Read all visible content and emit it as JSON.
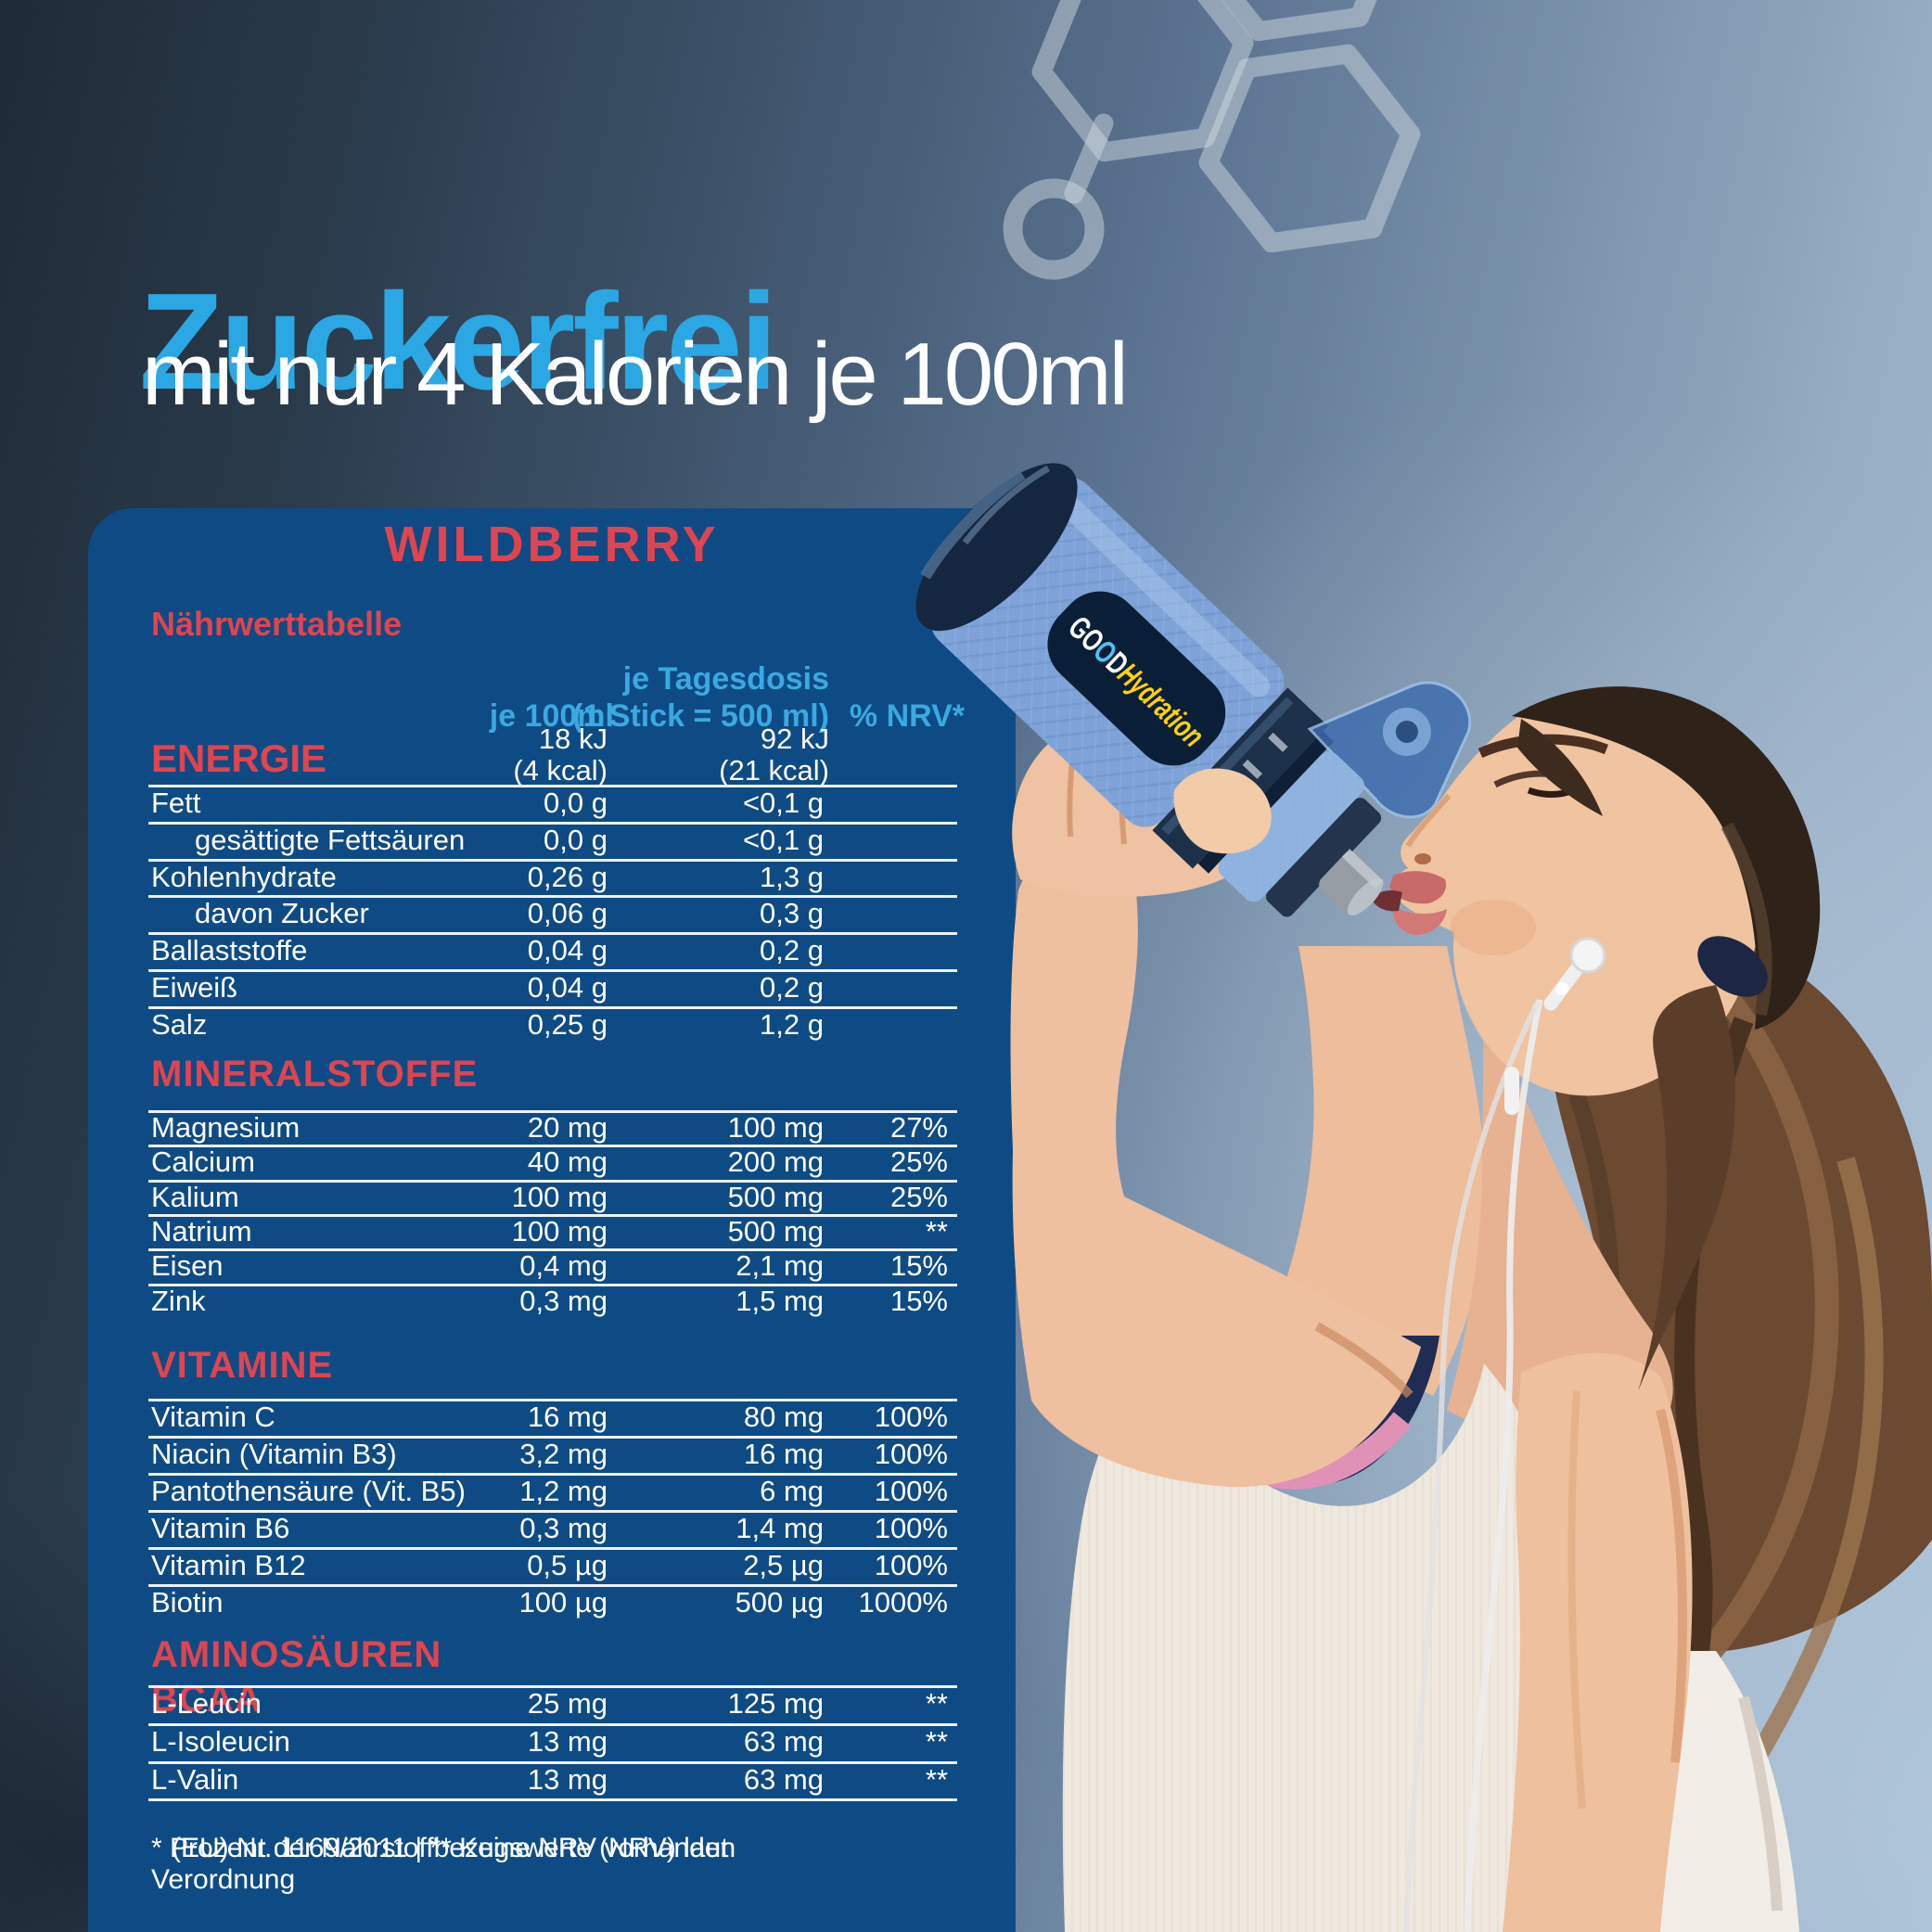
{
  "title": {
    "headline": "Zuckerfrei",
    "subheadline": "mit nur 4 Kalorien je 100ml"
  },
  "panel": {
    "flavor": "WILDBERRY",
    "table_title": "Nährwerttabelle",
    "columns": {
      "per100": "je 100ml",
      "daily_line1": "je Tagesdosis",
      "daily_line2": "(1 Stick = 500 ml)",
      "nrv": "% NRV*"
    },
    "energy": {
      "label": "ENERGIE",
      "per100_line1": "18 kJ",
      "per100_line2": "(4 kcal)",
      "daily_line1": "92 kJ",
      "daily_line2": "(21 kcal)"
    },
    "basic_rows": [
      {
        "label": "Fett",
        "indent": false,
        "per100": "0,0 g",
        "daily": "<0,1 g",
        "nrv": ""
      },
      {
        "label": "gesättigte Fettsäuren",
        "indent": true,
        "per100": "0,0 g",
        "daily": "<0,1 g",
        "nrv": ""
      },
      {
        "label": "Kohlenhydrate",
        "indent": false,
        "per100": "0,26 g",
        "daily": "1,3 g",
        "nrv": ""
      },
      {
        "label": "davon Zucker",
        "indent": true,
        "per100": "0,06 g",
        "daily": "0,3 g",
        "nrv": ""
      },
      {
        "label": "Ballaststoffe",
        "indent": false,
        "per100": "0,04 g",
        "daily": "0,2 g",
        "nrv": ""
      },
      {
        "label": "Eiweiß",
        "indent": false,
        "per100": "0,04 g",
        "daily": "0,2 g",
        "nrv": ""
      },
      {
        "label": "Salz",
        "indent": false,
        "per100": "0,25 g",
        "daily": "1,2 g",
        "nrv": ""
      }
    ],
    "sections": [
      {
        "label": "MINERALSTOFFE",
        "closing_rule": false,
        "rows": [
          {
            "label": "Magnesium",
            "per100": "20 mg",
            "daily": "100 mg",
            "nrv": "27%"
          },
          {
            "label": "Calcium",
            "per100": "40 mg",
            "daily": "200 mg",
            "nrv": "25%"
          },
          {
            "label": "Kalium",
            "per100": "100 mg",
            "daily": "500 mg",
            "nrv": "25%"
          },
          {
            "label": "Natrium",
            "per100": "100 mg",
            "daily": "500 mg",
            "nrv": "**"
          },
          {
            "label": "Eisen",
            "per100": "0,4 mg",
            "daily": "2,1 mg",
            "nrv": "15%"
          },
          {
            "label": "Zink",
            "per100": "0,3 mg",
            "daily": "1,5 mg",
            "nrv": "15%"
          }
        ]
      },
      {
        "label": "VITAMINE",
        "closing_rule": false,
        "rows": [
          {
            "label": "Vitamin C",
            "per100": "16 mg",
            "daily": "80 mg",
            "nrv": "100%"
          },
          {
            "label": "Niacin (Vitamin B3)",
            "per100": "3,2 mg",
            "daily": "16 mg",
            "nrv": "100%"
          },
          {
            "label": "Pantothensäure (Vit. B5)",
            "per100": "1,2 mg",
            "daily": "6 mg",
            "nrv": "100%"
          },
          {
            "label": "Vitamin B6",
            "per100": "0,3 mg",
            "daily": "1,4 mg",
            "nrv": "100%"
          },
          {
            "label": "Vitamin B12",
            "per100": "0,5 µg",
            "daily": "2,5 µg",
            "nrv": "100%"
          },
          {
            "label": "Biotin",
            "per100": "100 µg",
            "daily": "500 µg",
            "nrv": "1000%"
          }
        ]
      },
      {
        "label": "AMINOSÄUREN BCAA",
        "closing_rule": true,
        "rows": [
          {
            "label": "L-Leucin",
            "per100": "25 mg",
            "daily": "125 mg",
            "nrv": "**"
          },
          {
            "label": "L-Isoleucin",
            "per100": "13 mg",
            "daily": "63 mg",
            "nrv": "**"
          },
          {
            "label": "L-Valin",
            "per100": "13 mg",
            "daily": "63 mg",
            "nrv": "**"
          }
        ]
      }
    ],
    "footnote_line1": "* Prozent der Nährstoffbezugswerte (NRV) laut Verordnung",
    "footnote_line2": "(EU) Nr. 1169/2011 | ** Keine NRV vorhanden"
  },
  "photo": {
    "bottle_text_go": "GO",
    "bottle_text_o": "O",
    "bottle_text_d": "D",
    "bottle_text_hydration": "Hydration"
  },
  "colors": {
    "headline_blue": "#2ba7e3",
    "panel_blue": "#0e4b85",
    "accent_red": "#e0444e",
    "info_blue": "#3aa9e1",
    "text_white": "#ffffff",
    "bottle_yellow": "#ffd300",
    "bottle_body_blue": "#7fa3d8"
  }
}
